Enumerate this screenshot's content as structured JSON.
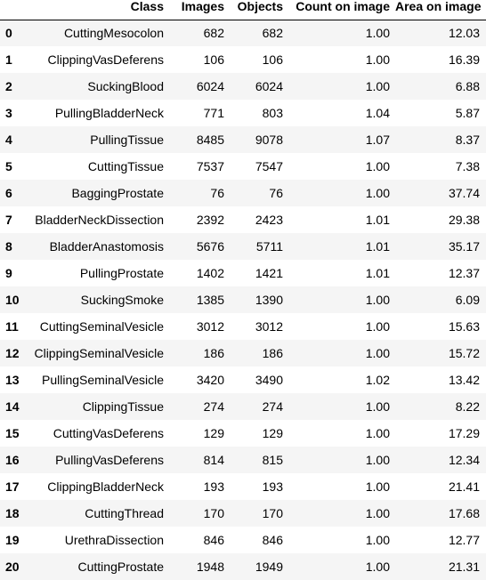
{
  "table": {
    "columns": [
      "",
      "Class",
      "Images",
      "Objects",
      "Count on image",
      "Area on image"
    ],
    "rows": [
      {
        "index": "0",
        "class": "CuttingMesocolon",
        "images": "682",
        "objects": "682",
        "count": "1.00",
        "area": "12.03"
      },
      {
        "index": "1",
        "class": "ClippingVasDeferens",
        "images": "106",
        "objects": "106",
        "count": "1.00",
        "area": "16.39"
      },
      {
        "index": "2",
        "class": "SuckingBlood",
        "images": "6024",
        "objects": "6024",
        "count": "1.00",
        "area": "6.88"
      },
      {
        "index": "3",
        "class": "PullingBladderNeck",
        "images": "771",
        "objects": "803",
        "count": "1.04",
        "area": "5.87"
      },
      {
        "index": "4",
        "class": "PullingTissue",
        "images": "8485",
        "objects": "9078",
        "count": "1.07",
        "area": "8.37"
      },
      {
        "index": "5",
        "class": "CuttingTissue",
        "images": "7537",
        "objects": "7547",
        "count": "1.00",
        "area": "7.38"
      },
      {
        "index": "6",
        "class": "BaggingProstate",
        "images": "76",
        "objects": "76",
        "count": "1.00",
        "area": "37.74"
      },
      {
        "index": "7",
        "class": "BladderNeckDissection",
        "images": "2392",
        "objects": "2423",
        "count": "1.01",
        "area": "29.38"
      },
      {
        "index": "8",
        "class": "BladderAnastomosis",
        "images": "5676",
        "objects": "5711",
        "count": "1.01",
        "area": "35.17"
      },
      {
        "index": "9",
        "class": "PullingProstate",
        "images": "1402",
        "objects": "1421",
        "count": "1.01",
        "area": "12.37"
      },
      {
        "index": "10",
        "class": "SuckingSmoke",
        "images": "1385",
        "objects": "1390",
        "count": "1.00",
        "area": "6.09"
      },
      {
        "index": "11",
        "class": "CuttingSeminalVesicle",
        "images": "3012",
        "objects": "3012",
        "count": "1.00",
        "area": "15.63"
      },
      {
        "index": "12",
        "class": "ClippingSeminalVesicle",
        "images": "186",
        "objects": "186",
        "count": "1.00",
        "area": "15.72"
      },
      {
        "index": "13",
        "class": "PullingSeminalVesicle",
        "images": "3420",
        "objects": "3490",
        "count": "1.02",
        "area": "13.42"
      },
      {
        "index": "14",
        "class": "ClippingTissue",
        "images": "274",
        "objects": "274",
        "count": "1.00",
        "area": "8.22"
      },
      {
        "index": "15",
        "class": "CuttingVasDeferens",
        "images": "129",
        "objects": "129",
        "count": "1.00",
        "area": "17.29"
      },
      {
        "index": "16",
        "class": "PullingVasDeferens",
        "images": "814",
        "objects": "815",
        "count": "1.00",
        "area": "12.34"
      },
      {
        "index": "17",
        "class": "ClippingBladderNeck",
        "images": "193",
        "objects": "193",
        "count": "1.00",
        "area": "21.41"
      },
      {
        "index": "18",
        "class": "CuttingThread",
        "images": "170",
        "objects": "170",
        "count": "1.00",
        "area": "17.68"
      },
      {
        "index": "19",
        "class": "UrethraDissection",
        "images": "846",
        "objects": "846",
        "count": "1.00",
        "area": "12.77"
      },
      {
        "index": "20",
        "class": "CuttingProstate",
        "images": "1948",
        "objects": "1949",
        "count": "1.00",
        "area": "21.31"
      }
    ]
  }
}
